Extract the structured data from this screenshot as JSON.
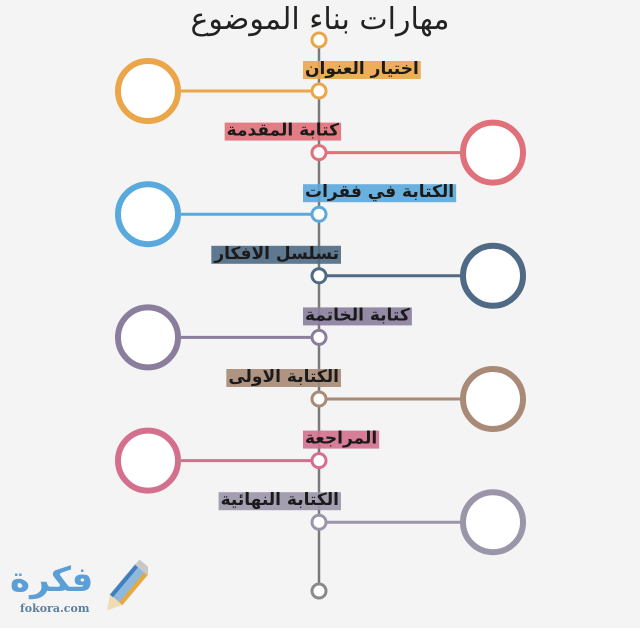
{
  "title": "مهارات بناء الموضوع",
  "spine_color": "#7a7a7a",
  "top_node_color": "#eba64a",
  "bottom_node_color": "#8a8a8a",
  "steps": [
    {
      "label": "اختيار العنوان",
      "side": "left",
      "color": "#eba64a"
    },
    {
      "label": "كتابة المقدمة",
      "side": "right",
      "color": "#e0707a"
    },
    {
      "label": "الكتابة في فقرات",
      "side": "left",
      "color": "#5aa9dc"
    },
    {
      "label": "تسلسل الافكار",
      "side": "right",
      "color": "#4e6a85"
    },
    {
      "label": "كتابة الخاتمة",
      "side": "left",
      "color": "#8a7e9c"
    },
    {
      "label": "الكتابة الاولى",
      "side": "right",
      "color": "#a88a76"
    },
    {
      "label": "المراجعة",
      "side": "left",
      "color": "#d4708e"
    },
    {
      "label": "الكتابة النهائية",
      "side": "right",
      "color": "#9b95aa"
    }
  ],
  "logo": {
    "text": "فكرة",
    "sub": "fokora.com",
    "color": "#5b9fd6"
  }
}
